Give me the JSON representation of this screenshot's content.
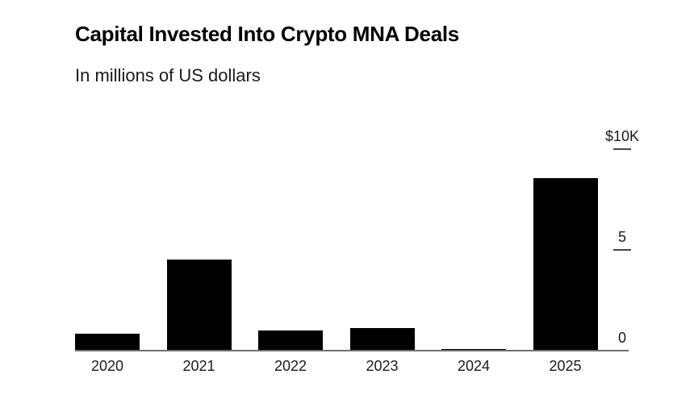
{
  "header": {
    "title": "Capital Invested Into Crypto MNA Deals",
    "subtitle": "In millions of US dollars"
  },
  "chart_data": {
    "type": "bar",
    "title": "Capital Invested Into Crypto MNA Deals",
    "subtitle": "In millions of US dollars",
    "unit": "millions of US dollars",
    "categories": [
      "2020",
      "2021",
      "2022",
      "2023",
      "2024",
      "2025"
    ],
    "values": [
      840,
      4520,
      1000,
      1140,
      100,
      8580
    ],
    "ylim": [
      0,
      10000
    ],
    "yticks": [
      {
        "value": 10000,
        "label": "$10K",
        "dash": true
      },
      {
        "value": 5000,
        "label": "5",
        "dash": true
      },
      {
        "value": 0,
        "label": "0",
        "dash": false
      }
    ],
    "y_axis_side": "right",
    "grid": false,
    "legend": false,
    "colors": {
      "bar": "#000000",
      "axis_line": "#707070",
      "tick_dash": "#454545",
      "text": "#1a1a1a",
      "title": "#000000",
      "background": "#ffffff"
    }
  }
}
